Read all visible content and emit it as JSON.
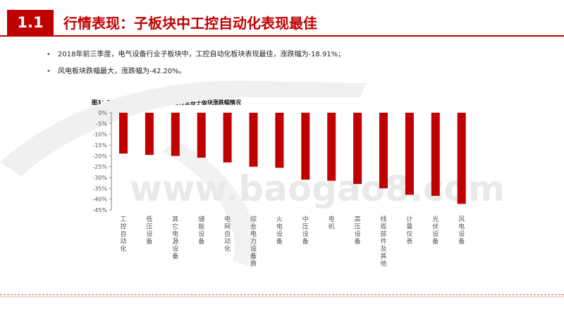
{
  "header": {
    "section_number": "1.1",
    "title": "行情表现：子板块中工控自动化表现最佳"
  },
  "bullets": [
    "2018年前三季度，电气设备行业子板块中，工控自动化板块表现最佳，涨跌幅为-18.91%；",
    "风电板块跌幅最大，涨跌幅为-42.20%。"
  ],
  "watermark": "www.baogao8.com",
  "colors": {
    "accent": "#c00000",
    "bar": "#c00000"
  },
  "chart_data": {
    "type": "bar",
    "title": "图3：2018年前三季度，电气设备行业各子版块涨跌幅情况",
    "categories": [
      "工控自动化",
      "低压设备",
      "其它电源设备",
      "储能设备",
      "电网自动化",
      "综合电力设备商",
      "火电设备",
      "中压设备",
      "电机",
      "高压设备",
      "线缆部件及其他",
      "计量仪表",
      "光伏设备",
      "风电设备"
    ],
    "values": [
      -18.91,
      -19.5,
      -20.0,
      -20.8,
      -23.0,
      -25.0,
      -25.5,
      -31.0,
      -31.5,
      -33.0,
      -35.0,
      -38.0,
      -38.5,
      -42.2
    ],
    "y_ticks": [
      "0%",
      "-5%",
      "-10%",
      "-15%",
      "-20%",
      "-25%",
      "-30%",
      "-35%",
      "-40%",
      "-45%"
    ],
    "ylim": [
      -45,
      0
    ],
    "grid": false,
    "legend": "none"
  }
}
